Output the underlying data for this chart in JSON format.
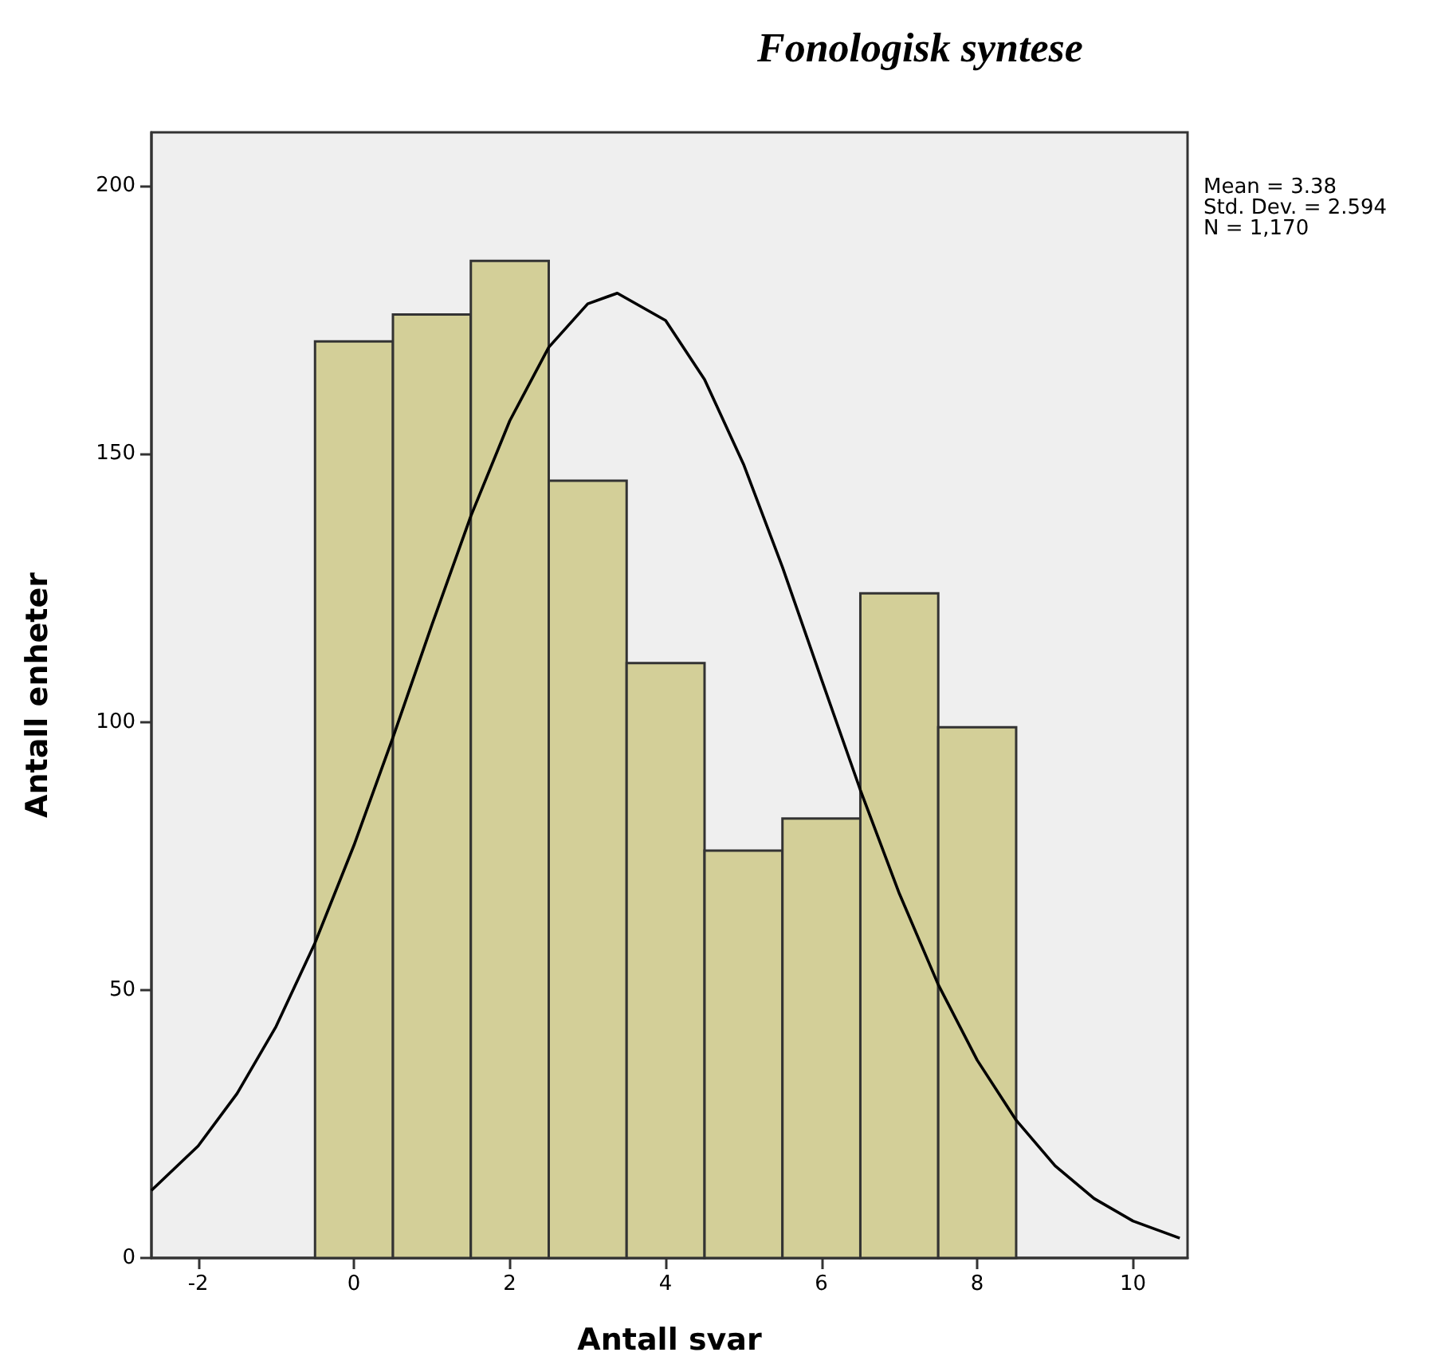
{
  "chart_data": {
    "type": "histogram",
    "title": "Fonologisk syntese",
    "xlabel": "Antall svar",
    "ylabel": "Antall enheter",
    "annotations": [
      "Mean = 3.38",
      "Std. Dev. = 2.594",
      "N = 1,170"
    ],
    "bins": [
      -0.5,
      0.5,
      1.5,
      2.5,
      3.5,
      4.5,
      5.5,
      6.5,
      7.5,
      8.5
    ],
    "values": [
      171,
      176,
      186,
      145,
      111,
      76,
      82,
      124,
      99
    ],
    "color": "#d3cf98",
    "series": [
      {
        "type": "line",
        "color": "#000000",
        "marker": "none",
        "x": [
          -2.6,
          -2,
          -1.5,
          -1,
          -0.5,
          0,
          0.5,
          1,
          1.5,
          2,
          2.5,
          3,
          3.38,
          4,
          4.5,
          5,
          5.5,
          6,
          6.5,
          7,
          7.5,
          8,
          8.5,
          9,
          9.5,
          10,
          10.6
        ],
        "values": [
          12.6,
          20.9,
          30.7,
          43.2,
          58.8,
          77.0,
          97.1,
          118.1,
          138.4,
          156.2,
          169.9,
          178.0,
          180.0,
          174.9,
          163.9,
          148.1,
          128.9,
          108.0,
          87.3,
          68.0,
          51.0,
          36.9,
          25.7,
          17.2,
          11.1,
          6.9,
          3.7
        ]
      }
    ],
    "xlim": [
      -2.6,
      10.7
    ],
    "xticks": [
      -2,
      0,
      2,
      4,
      6,
      8,
      10
    ],
    "ylim": [
      0,
      210
    ],
    "yticks": [
      0,
      50,
      100,
      150,
      200
    ]
  }
}
